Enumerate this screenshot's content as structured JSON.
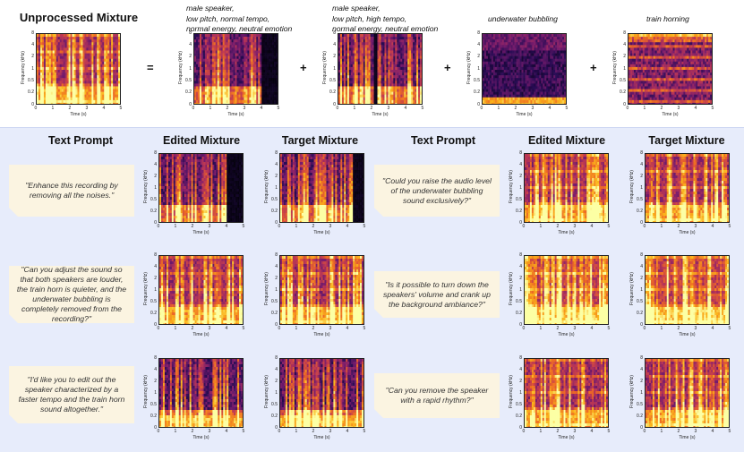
{
  "colors": {
    "top_bg": "#ffffff",
    "bottom_bg": "#e7ecfb",
    "prompt_bg": "#fbf4e1"
  },
  "top": {
    "mixture_title": "Unprocessed Mixture",
    "operators": [
      "=",
      "+",
      "+",
      "+"
    ],
    "sources": [
      {
        "caption_lines": [
          "male speaker,",
          "low pitch, normal tempo,",
          "normal energy, neutral emotion"
        ]
      },
      {
        "caption_lines": [
          "male speaker,",
          "low pitch, high tempo,",
          "normal energy, neutral emotion"
        ]
      },
      {
        "caption_lines": [
          "underwater bubbling"
        ]
      },
      {
        "caption_lines": [
          "train horning"
        ]
      }
    ]
  },
  "headers": [
    "Text Prompt",
    "Edited Mixture",
    "Target Mixture",
    "Text Prompt",
    "Edited Mixture",
    "Target Mixture"
  ],
  "prompts": [
    "\"Enhance this recording by removing all the noises.\"",
    "\"Can you adjust the sound so that both speakers are louder, the train horn is quieter, and the underwater bubbling is completely removed from the recording?\"",
    "\"I'd like you to edit out the speaker characterized by a faster tempo and the train horn sound altogether.\"",
    "\"Could you raise the audio level of the underwater bubbling sound exclusively?\"",
    "\"Is it possible to turn down the speakers' volume and crank up the background ambiance?\"",
    "\"Can you remove the speaker with a rapid rhythm?\""
  ],
  "axes": {
    "ylabel": "Frequency (kHz)",
    "xlabel": "Time (s)",
    "yticks": [
      "8",
      "4",
      "2",
      "1",
      "0.5",
      "0.2",
      "0"
    ],
    "xticks": [
      "0",
      "1",
      "2",
      "3",
      "4",
      "5"
    ]
  }
}
